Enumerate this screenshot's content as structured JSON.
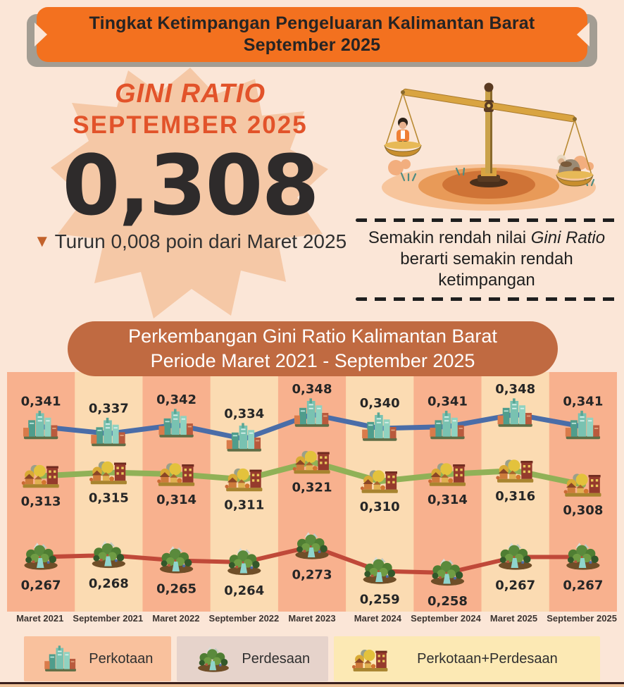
{
  "header": {
    "line1": "Tingkat Ketimpangan Pengeluaran Kalimantan Barat",
    "line2": "September 2025",
    "bg_color": "#f3711f"
  },
  "gini": {
    "title": "GINI RATIO",
    "period": "SEPTEMBER 2025",
    "value": "0,308",
    "change": "Turun 0,008 poin dari Maret 2025",
    "accent_color": "#e2532a"
  },
  "note": {
    "part1": "Semakin rendah nilai ",
    "part2_italic": "Gini Ratio",
    "part3": " berarti semakin rendah ketimpangan"
  },
  "chart": {
    "title_line1": "Perkembangan Gini Ratio Kalimantan Barat",
    "title_line2": "Periode Maret 2021 - September 2025",
    "banner_color": "#c06a41"
  },
  "chart_data": {
    "type": "line",
    "title": "Perkembangan Gini Ratio Kalimantan Barat Periode Maret 2021 - September 2025",
    "categories": [
      "Maret 2021",
      "September 2021",
      "Maret 2022",
      "September 2022",
      "Maret 2023",
      "Maret 2024",
      "September 2024",
      "Maret 2025",
      "September 2025"
    ],
    "series": [
      {
        "name": "Perkotaan",
        "icon": "city",
        "color": "#4a6da8",
        "label_position": "above",
        "values": [
          0.341,
          0.337,
          0.342,
          0.334,
          0.348,
          0.34,
          0.341,
          0.348,
          0.341
        ],
        "labels": [
          "0,341",
          "0,337",
          "0,342",
          "0,334",
          "0,348",
          "0,340",
          "0,341",
          "0,348",
          "0,341"
        ]
      },
      {
        "name": "Perkotaan+Perdesaan",
        "icon": "town",
        "color": "#90b157",
        "label_position": "below",
        "values": [
          0.313,
          0.315,
          0.314,
          0.311,
          0.321,
          0.31,
          0.314,
          0.316,
          0.308
        ],
        "labels": [
          "0,313",
          "0,315",
          "0,314",
          "0,311",
          "0,321",
          "0,310",
          "0,314",
          "0,316",
          "0,308"
        ]
      },
      {
        "name": "Perdesaan",
        "icon": "village",
        "color": "#c04939",
        "label_position": "below",
        "values": [
          0.267,
          0.268,
          0.265,
          0.264,
          0.273,
          0.259,
          0.258,
          0.267,
          0.267
        ],
        "labels": [
          "0,267",
          "0,268",
          "0,265",
          "0,264",
          "0,273",
          "0,259",
          "0,258",
          "0,267",
          "0,267"
        ]
      }
    ],
    "column_colors": [
      "#f8b18e",
      "#fbdbb2"
    ],
    "ylim": [
      0.25,
      0.36
    ],
    "grid": false,
    "legend_position": "bottom"
  },
  "legend": {
    "items": [
      {
        "label": "Perkotaan",
        "icon": "city",
        "bg": "#f9c19d"
      },
      {
        "label": "Perdesaan",
        "icon": "village",
        "bg": "#e6d3cb"
      },
      {
        "label": "Perkotaan+Perdesaan",
        "icon": "town",
        "bg": "#fce9b4"
      }
    ]
  }
}
